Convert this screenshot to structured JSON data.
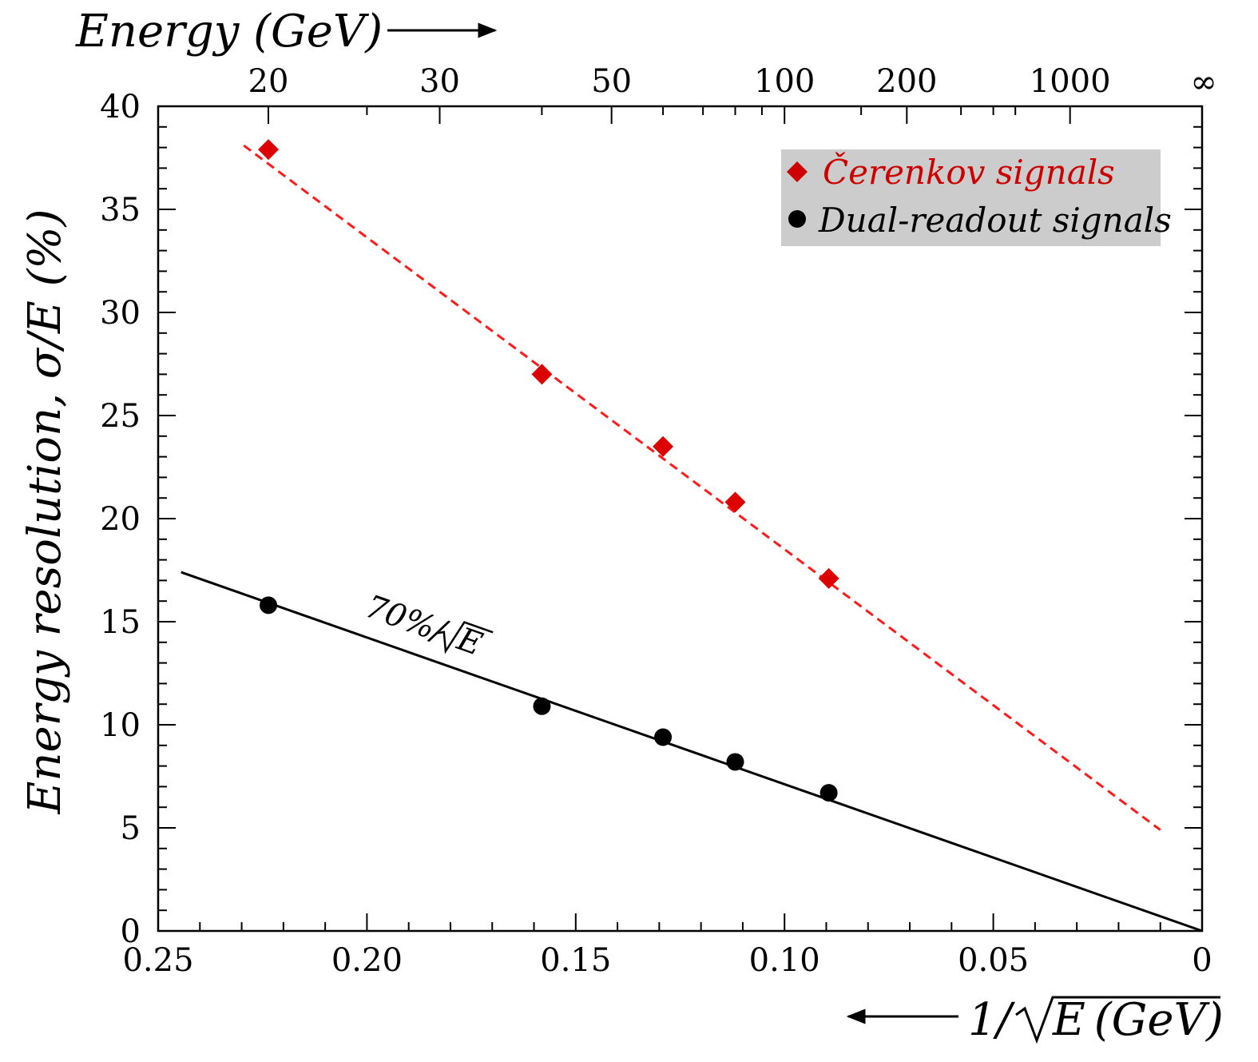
{
  "chart_data": {
    "type": "scatter",
    "top_axis": {
      "title": "Energy (GeV)",
      "tick_labels": [
        "20",
        "30",
        "50",
        "100",
        "200",
        "1000",
        "∞"
      ],
      "tick_energies": [
        20,
        30,
        50,
        100,
        200,
        1000,
        null
      ]
    },
    "x_axis": {
      "title": "1/√E (GeV)",
      "title_prefix": "1/",
      "title_sqrt": "E",
      "title_suffix": " (GeV)",
      "xlim": [
        0.25,
        0
      ],
      "ticks": [
        0.25,
        0.2,
        0.15,
        0.1,
        0.05,
        0
      ],
      "tick_labels": [
        "0.25",
        "0.20",
        "0.15",
        "0.10",
        "0.05",
        "0"
      ],
      "reversed": true
    },
    "y_axis": {
      "title": "Energy resolution, σ/E (%)",
      "ylim": [
        0,
        40
      ],
      "ticks": [
        0,
        5,
        10,
        15,
        20,
        25,
        30,
        35,
        40
      ],
      "tick_labels": [
        "0",
        "5",
        "10",
        "15",
        "20",
        "25",
        "30",
        "35",
        "40"
      ]
    },
    "legend_position": "top-right",
    "series": [
      {
        "name": "Čerenkov signals",
        "marker": "diamond",
        "color": "#dd0000",
        "x": [
          0.2236,
          0.1581,
          0.1291,
          0.1118,
          0.0894
        ],
        "y": [
          37.9,
          27.0,
          23.5,
          20.8,
          17.1
        ],
        "fit": {
          "style": "dashed",
          "x": [
            0.2295,
            0.01
          ],
          "y": [
            38.1,
            4.9
          ]
        }
      },
      {
        "name": "Dual-readout signals",
        "marker": "circle",
        "color": "#000000",
        "x": [
          0.2236,
          0.1581,
          0.1291,
          0.1118,
          0.0894
        ],
        "y": [
          15.8,
          10.9,
          9.4,
          8.2,
          6.7
        ],
        "fit": {
          "style": "solid",
          "x": [
            0.2445,
            0
          ],
          "y": [
            17.4,
            0
          ]
        }
      }
    ],
    "annotation": {
      "prefix": "70%/",
      "sqrt": "E",
      "x": 0.192,
      "y": 14.0
    }
  }
}
